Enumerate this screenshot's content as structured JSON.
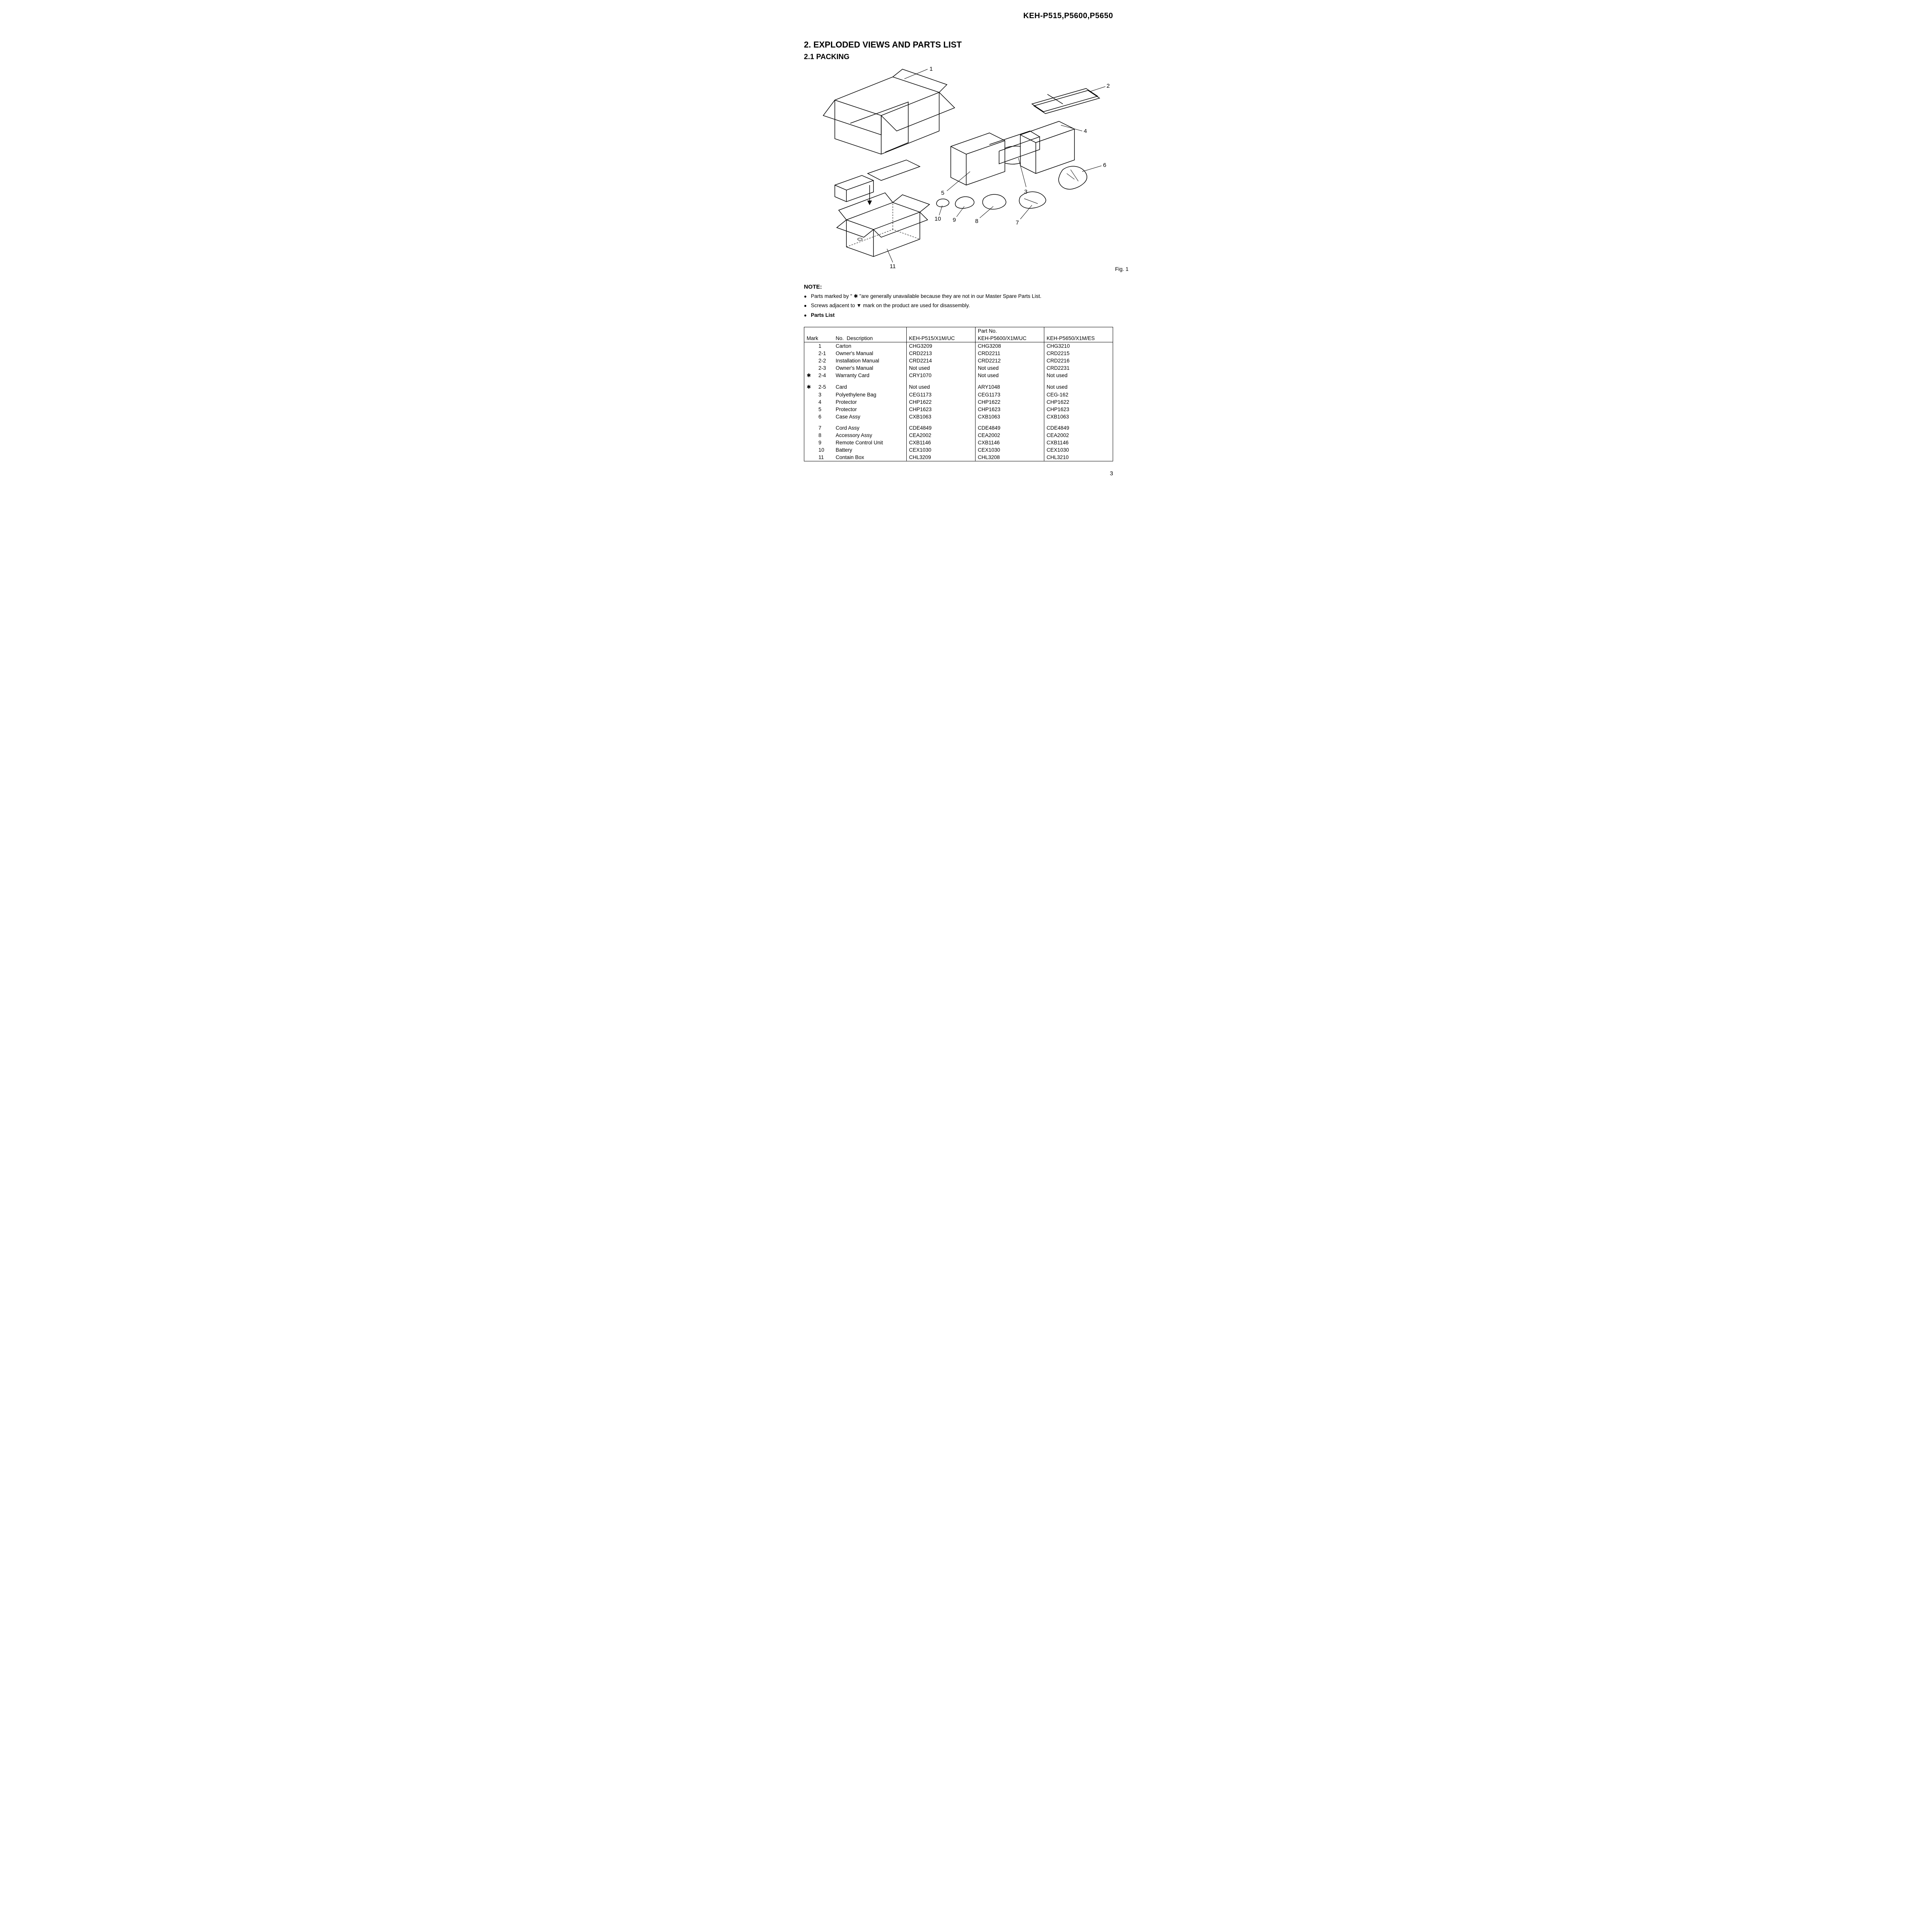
{
  "header_model": "KEH-P515,P5600,P5650",
  "section_title": "2. EXPLODED VIEWS AND PARTS LIST",
  "subsection_title": "2.1 PACKING",
  "figure_label": "Fig. 1",
  "diagram": {
    "callouts": [
      "1",
      "2",
      "3",
      "4",
      "5",
      "6",
      "7",
      "8",
      "9",
      "10",
      "11"
    ]
  },
  "note_heading": "NOTE:",
  "notes": [
    "Parts marked by \" ✱ \"are generally unavailable because they are not in our Master Spare Parts List.",
    "Screws adjacent to ▼ mark on the product are used for disassembly."
  ],
  "parts_list_label": "Parts List",
  "table": {
    "header_partno": "Part No.",
    "columns": [
      "Mark",
      "No.",
      "Description",
      "KEH-P515/X1M/UC",
      "KEH-P5600/X1M/UC",
      "KEH-P5650/X1M/ES"
    ],
    "groups": [
      [
        {
          "star": "",
          "mark": "1",
          "desc": "Carton",
          "c1": "CHG3209",
          "c2": "CHG3208",
          "c3": "CHG3210"
        },
        {
          "star": "",
          "mark": "2-1",
          "desc": "Owner's Manual",
          "c1": "CRD2213",
          "c2": "CRD2211",
          "c3": "CRD2215"
        },
        {
          "star": "",
          "mark": "2-2",
          "desc": "Installation Manual",
          "c1": "CRD2214",
          "c2": "CRD2212",
          "c3": "CRD2216"
        },
        {
          "star": "",
          "mark": "2-3",
          "desc": "Owner's Manual",
          "c1": "Not used",
          "c2": "Not used",
          "c3": "CRD2231"
        },
        {
          "star": "✱",
          "mark": "2-4",
          "desc": "Warranty Card",
          "c1": "CRY1070",
          "c2": "Not used",
          "c3": "Not used"
        }
      ],
      [
        {
          "star": "✱",
          "mark": "2-5",
          "desc": "Card",
          "c1": "Not used",
          "c2": "ARY1048",
          "c3": "Not used"
        },
        {
          "star": "",
          "mark": "3",
          "desc": "Polyethylene Bag",
          "c1": "CEG1173",
          "c2": "CEG1173",
          "c3": "CEG-162"
        },
        {
          "star": "",
          "mark": "4",
          "desc": "Protector",
          "c1": "CHP1622",
          "c2": "CHP1622",
          "c3": "CHP1622"
        },
        {
          "star": "",
          "mark": "5",
          "desc": "Protector",
          "c1": "CHP1623",
          "c2": "CHP1623",
          "c3": "CHP1623"
        },
        {
          "star": "",
          "mark": "6",
          "desc": "Case Assy",
          "c1": "CXB1063",
          "c2": "CXB1063",
          "c3": "CXB1063"
        }
      ],
      [
        {
          "star": "",
          "mark": "7",
          "desc": "Cord Assy",
          "c1": "CDE4849",
          "c2": "CDE4849",
          "c3": "CDE4849"
        },
        {
          "star": "",
          "mark": "8",
          "desc": "Accessory Assy",
          "c1": "CEA2002",
          "c2": "CEA2002",
          "c3": "CEA2002"
        },
        {
          "star": "",
          "mark": "9",
          "desc": "Remote Control Unit",
          "c1": "CXB1146",
          "c2": "CXB1146",
          "c3": "CXB1146"
        },
        {
          "star": "",
          "mark": "10",
          "desc": "Battery",
          "c1": "CEX1030",
          "c2": "CEX1030",
          "c3": "CEX1030"
        },
        {
          "star": "",
          "mark": "11",
          "desc": "Contain Box",
          "c1": "CHL3209",
          "c2": "CHL3208",
          "c3": "CHL3210"
        }
      ]
    ]
  },
  "page_number": "3"
}
